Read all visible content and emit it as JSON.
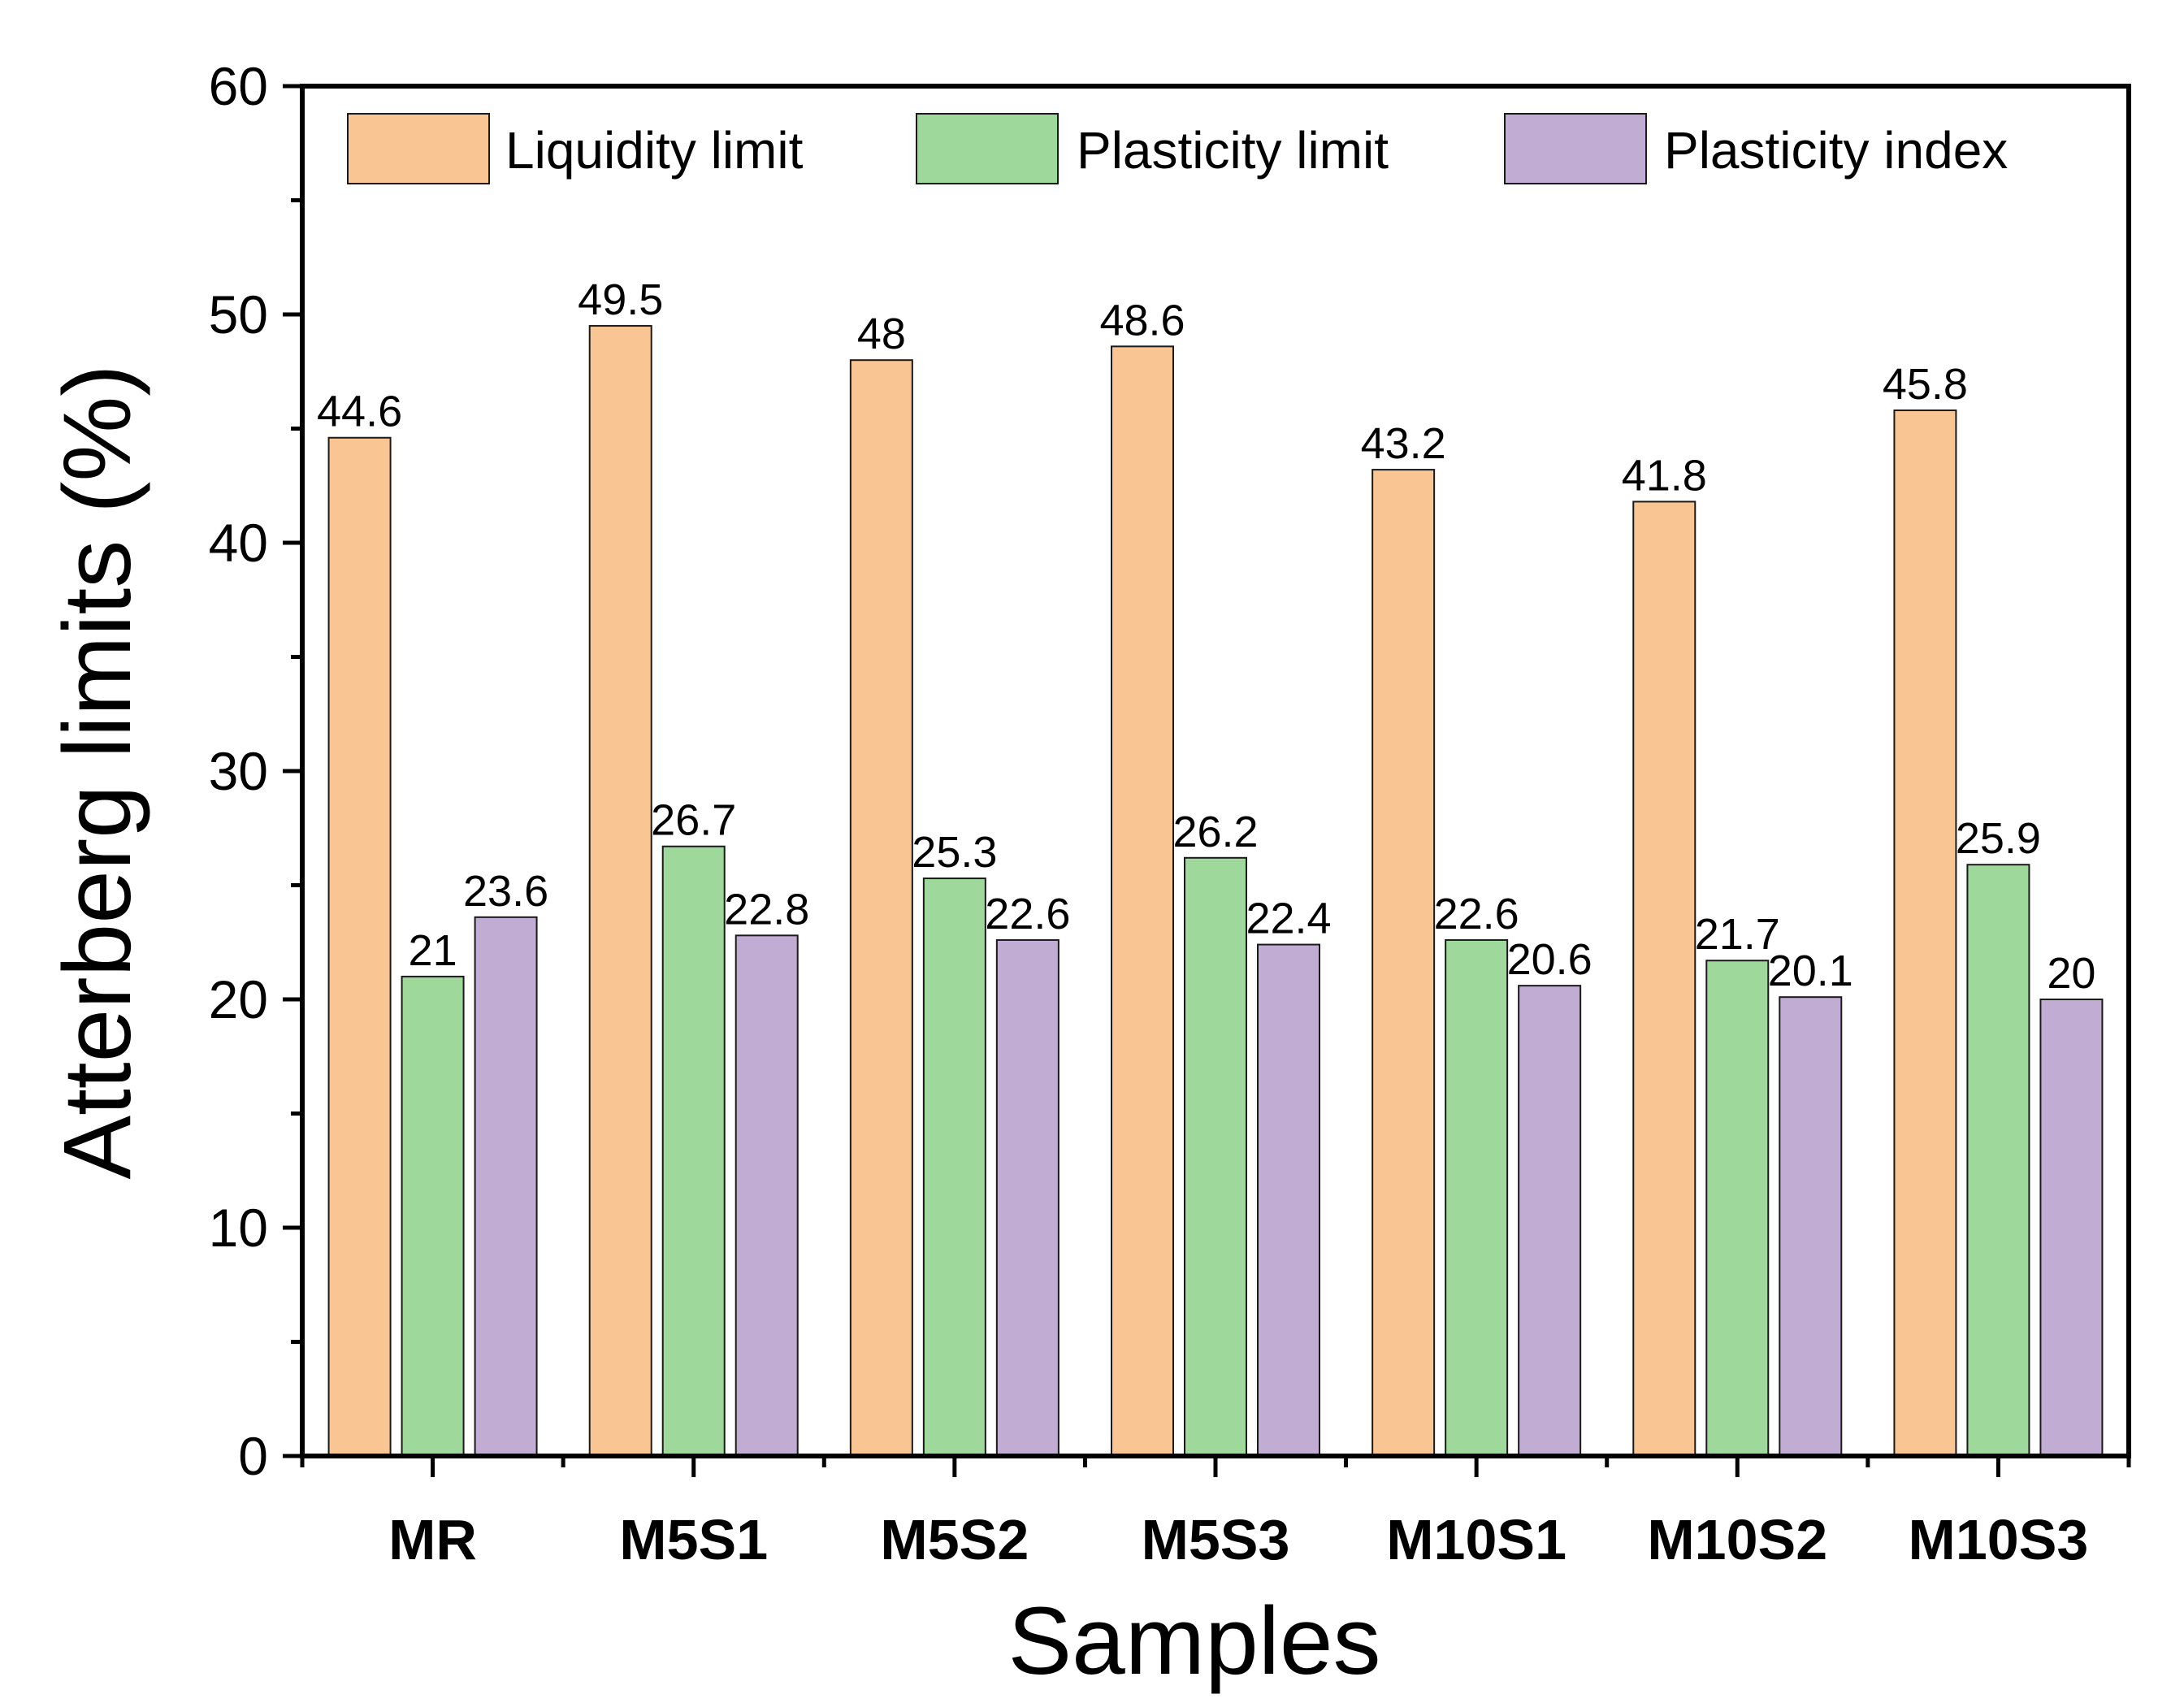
{
  "chart_data": {
    "type": "bar",
    "title": "",
    "xlabel": "Samples",
    "ylabel": "Atterberg limits (%)",
    "ylim": [
      0,
      60
    ],
    "yticks": [
      0,
      10,
      20,
      30,
      40,
      50,
      60
    ],
    "grid": false,
    "legend_position": "top",
    "categories": [
      "MR",
      "M5S1",
      "M5S2",
      "M5S3",
      "M10S1",
      "M10S2",
      "M10S3"
    ],
    "series": [
      {
        "name": "Liquidity limit",
        "color": "#F9C592",
        "values": [
          44.6,
          49.5,
          48,
          48.6,
          43.2,
          41.8,
          45.8
        ]
      },
      {
        "name": "Plasticity limit",
        "color": "#9ED89A",
        "values": [
          21,
          26.7,
          25.3,
          26.2,
          22.6,
          21.7,
          25.9
        ]
      },
      {
        "name": "Plasticity index",
        "color": "#C1ADD4",
        "values": [
          23.6,
          22.8,
          22.6,
          22.4,
          20.6,
          20.1,
          20
        ]
      }
    ]
  }
}
